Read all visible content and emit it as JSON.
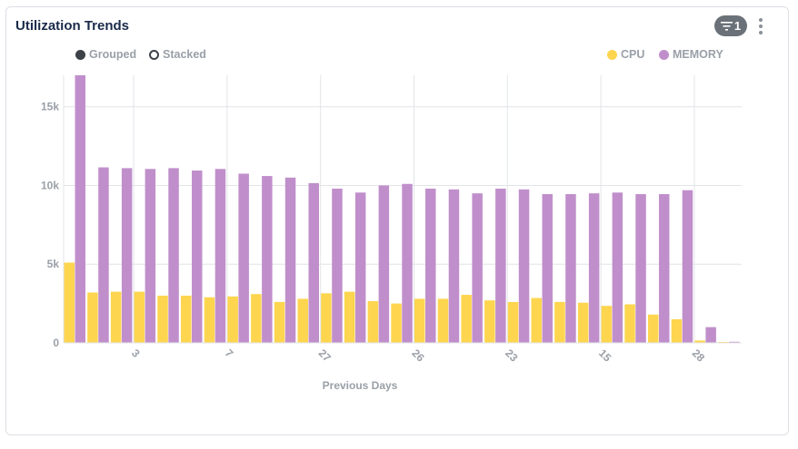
{
  "card": {
    "title": "Utilization Trends",
    "filter_count": "1",
    "filter_icon": "filter-icon",
    "menu_icon": "kebab-menu-icon"
  },
  "toggles": {
    "grouped_label": "Grouped",
    "stacked_label": "Stacked",
    "selected": "Grouped"
  },
  "chart_data": {
    "type": "bar",
    "mode": "grouped",
    "xlabel": "Previous Days",
    "ylabel": "",
    "ylim": [
      0,
      17000
    ],
    "yticks": [
      0,
      5000,
      10000,
      15000
    ],
    "ytick_labels": [
      "0",
      "5k",
      "10k",
      "15k"
    ],
    "grid": true,
    "legend_position": "top-right",
    "x_tick_labels": [
      {
        "after_group": 3,
        "label": "3"
      },
      {
        "after_group": 7,
        "label": "7"
      },
      {
        "after_group": 11,
        "label": "27"
      },
      {
        "after_group": 15,
        "label": "26"
      },
      {
        "after_group": 19,
        "label": "23"
      },
      {
        "after_group": 23,
        "label": "15"
      },
      {
        "after_group": 27,
        "label": "28"
      }
    ],
    "series": [
      {
        "name": "CPU",
        "color": "#fdd54f",
        "values": [
          5100,
          3200,
          3250,
          3250,
          3000,
          3000,
          2900,
          2950,
          3100,
          2600,
          2800,
          3150,
          3250,
          2650,
          2500,
          2800,
          2800,
          3050,
          2700,
          2600,
          2850,
          2600,
          2550,
          2350,
          2450,
          1800,
          1500,
          150,
          60
        ]
      },
      {
        "name": "MEMORY",
        "color": "#c08fcb",
        "values": [
          17000,
          11150,
          11100,
          11050,
          11100,
          10950,
          11050,
          10750,
          10600,
          10500,
          10150,
          9800,
          9550,
          10000,
          10100,
          9800,
          9750,
          9500,
          9800,
          9750,
          9450,
          9450,
          9500,
          9550,
          9450,
          9450,
          9700,
          1000,
          70
        ]
      }
    ]
  }
}
